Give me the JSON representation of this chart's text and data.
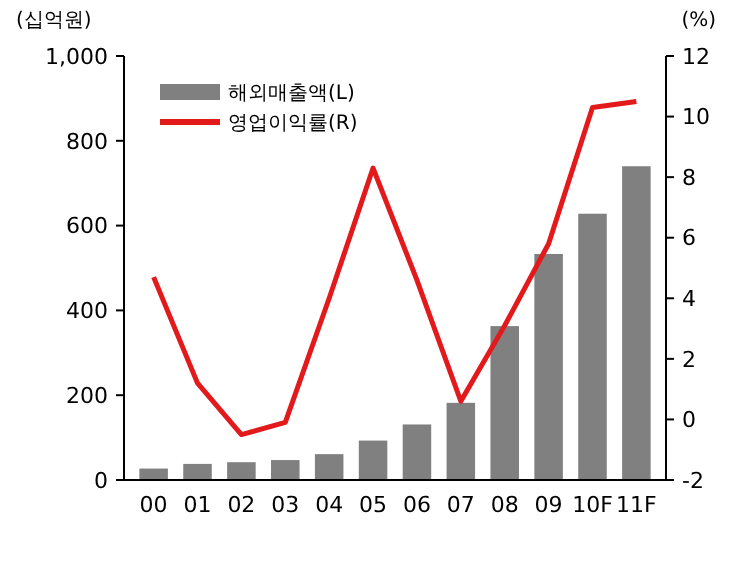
{
  "chart_data": {
    "type": "bar",
    "ylabel": "(십억원)",
    "y2label": "(%)",
    "categories": [
      "00",
      "01",
      "02",
      "03",
      "04",
      "05",
      "06",
      "07",
      "08",
      "09",
      "10F",
      "11F"
    ],
    "series": [
      {
        "name": "해외매출액(L)",
        "color": "#808080",
        "values": [
          27,
          38,
          42,
          47,
          61,
          93,
          131,
          182,
          363,
          533,
          628,
          740
        ]
      },
      {
        "name": "영업이익률(R)",
        "type": "line",
        "axis": "y2",
        "color": "#e31a1c",
        "values": [
          4.7,
          1.2,
          -0.5,
          -0.1,
          4.0,
          8.3,
          4.6,
          0.6,
          3.1,
          5.8,
          10.3,
          10.5
        ]
      }
    ],
    "ylim": [
      0,
      1000
    ],
    "yticks": [
      0,
      200,
      400,
      600,
      800,
      {
        "value": 1000,
        "label": "1,000"
      }
    ],
    "y2lim": [
      -2,
      12
    ],
    "y2ticks": [
      -2,
      0,
      2,
      4,
      6,
      8,
      10,
      12
    ],
    "legend": "top left",
    "grid": false,
    "marker": "none",
    "line_style": "solid"
  }
}
